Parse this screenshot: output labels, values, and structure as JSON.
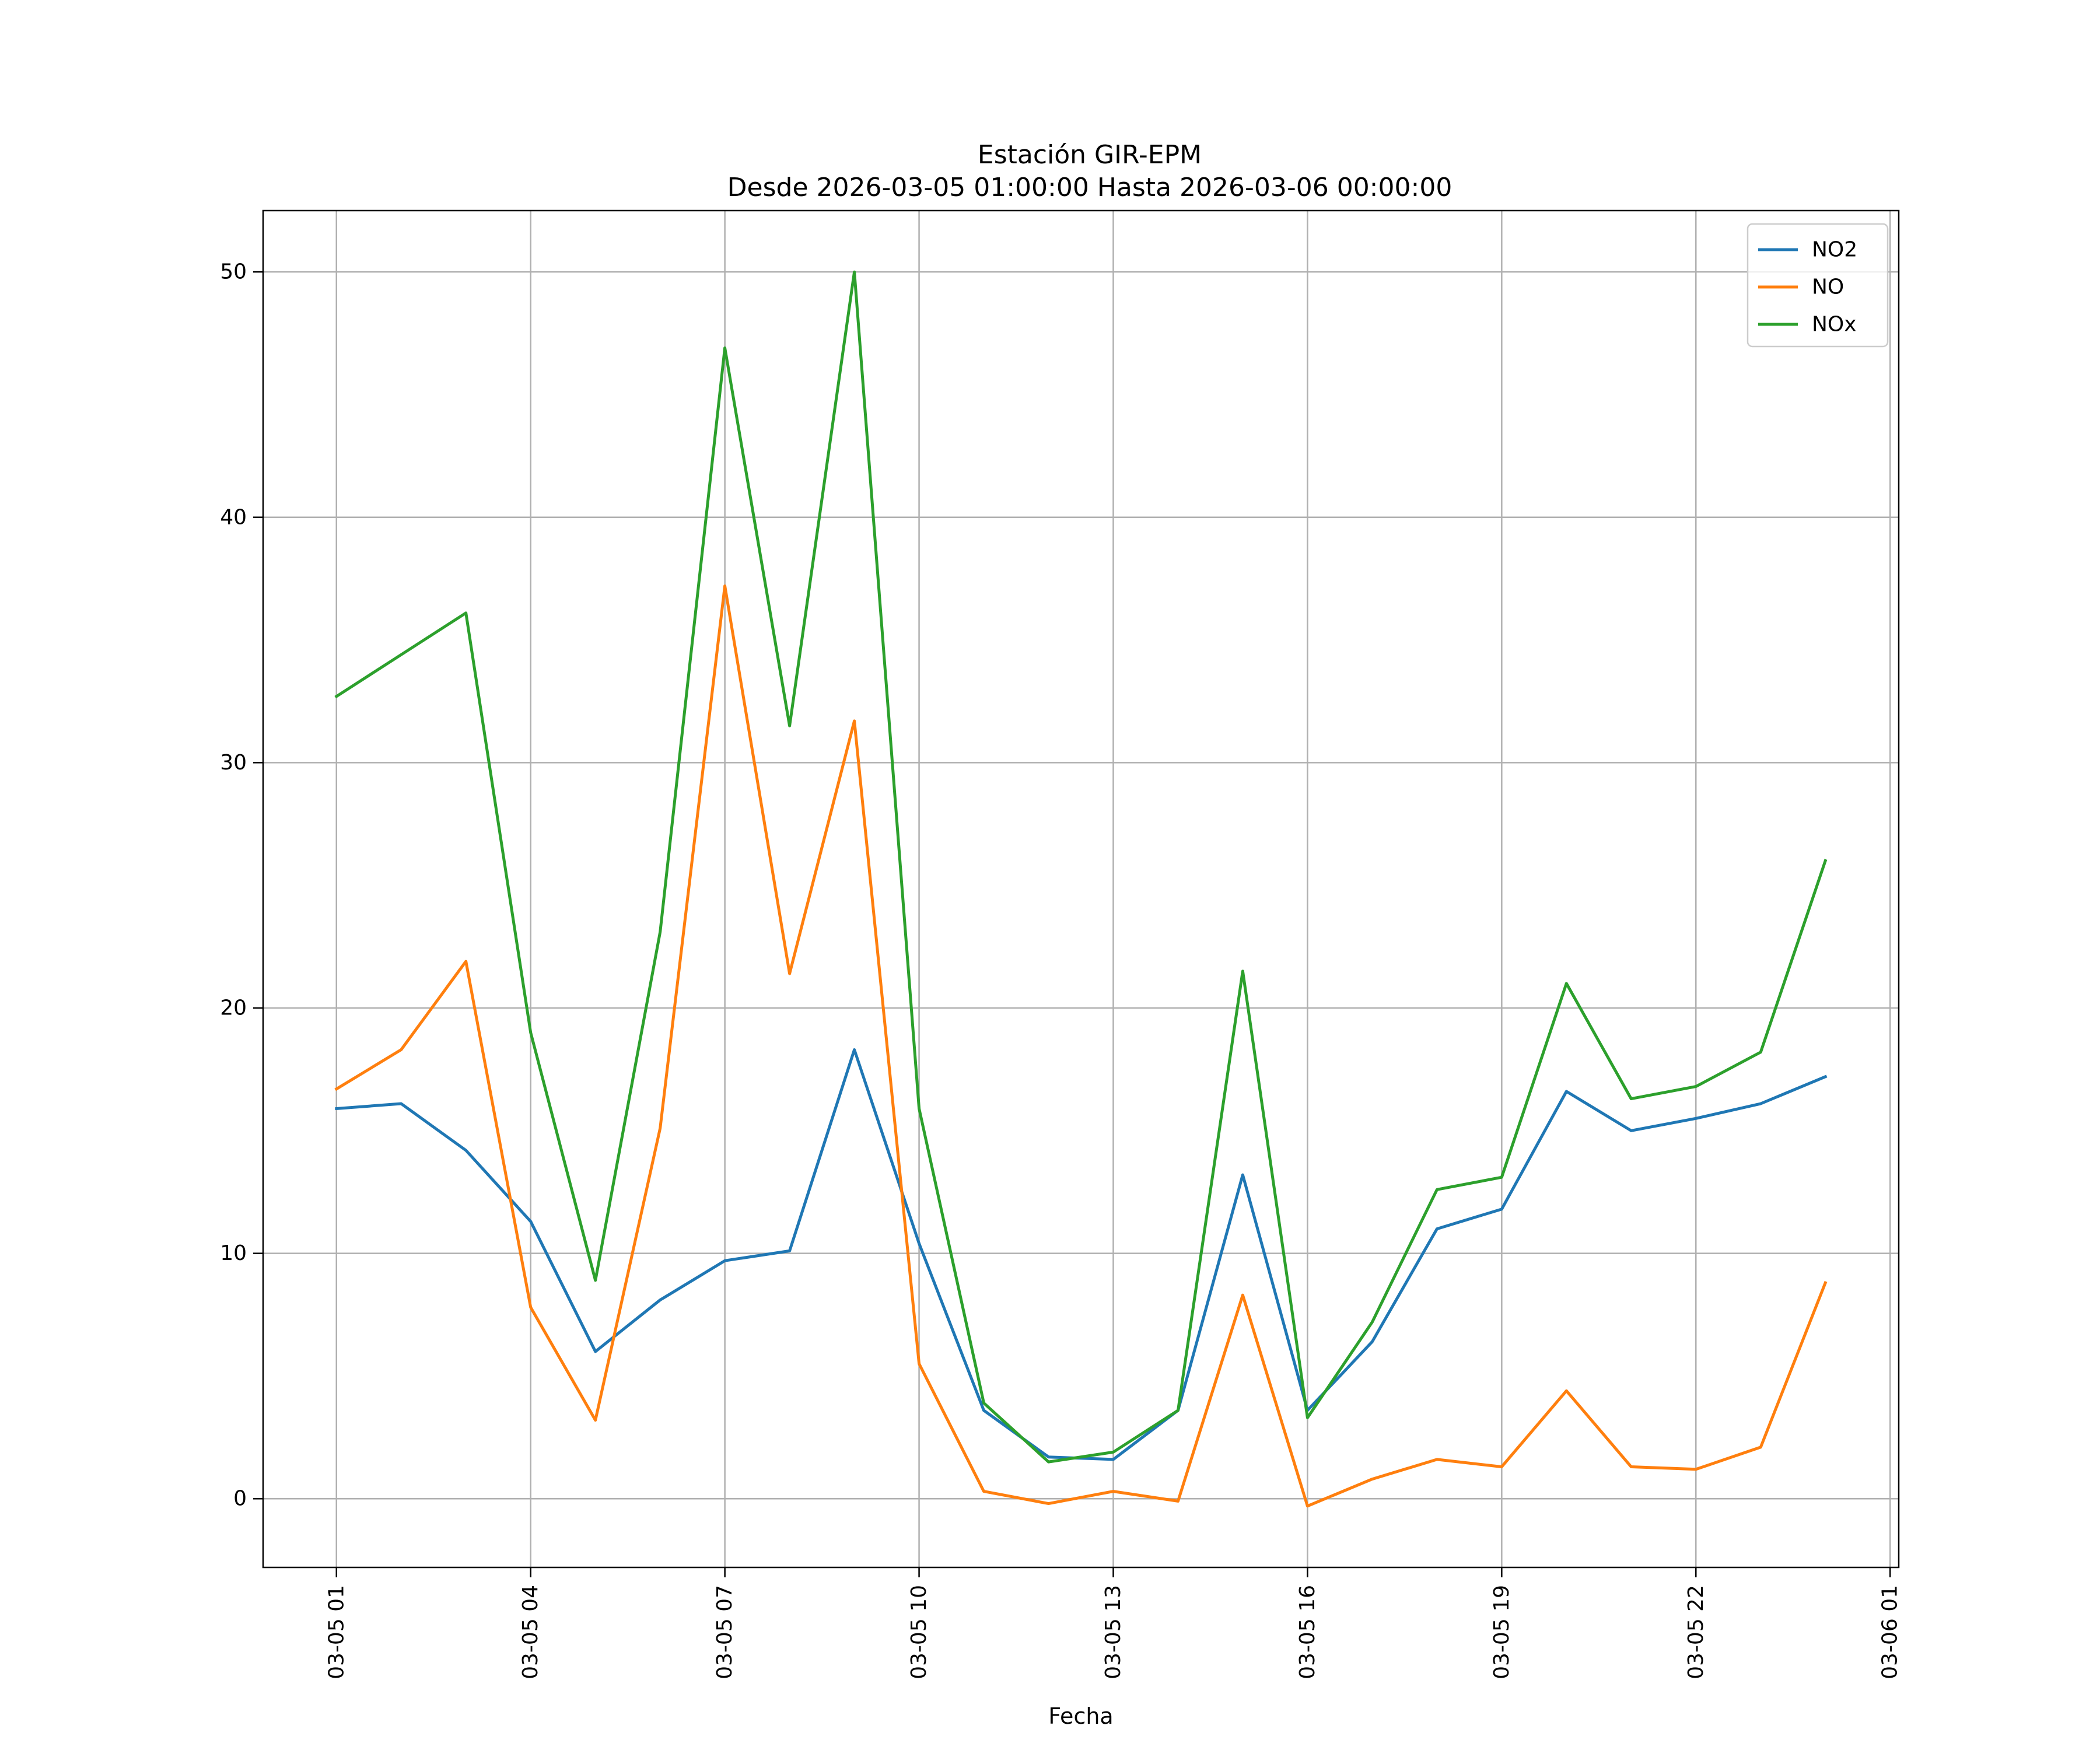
{
  "chart_data": {
    "type": "line",
    "title": "Estación GIR-EPM",
    "subtitle": "Desde 2026-03-05 01:00:00 Hasta 2026-03-06 00:00:00",
    "xlabel": "Fecha",
    "ylabel": "",
    "x": [
      "2026-03-05 01:00",
      "2026-03-05 02:00",
      "2026-03-05 03:00",
      "2026-03-05 04:00",
      "2026-03-05 05:00",
      "2026-03-05 06:00",
      "2026-03-05 07:00",
      "2026-03-05 08:00",
      "2026-03-05 09:00",
      "2026-03-05 10:00",
      "2026-03-05 11:00",
      "2026-03-05 12:00",
      "2026-03-05 13:00",
      "2026-03-05 14:00",
      "2026-03-05 15:00",
      "2026-03-05 16:00",
      "2026-03-05 17:00",
      "2026-03-05 18:00",
      "2026-03-05 19:00",
      "2026-03-05 20:00",
      "2026-03-05 21:00",
      "2026-03-05 22:00",
      "2026-03-05 23:00",
      "2026-03-06 00:00"
    ],
    "xlim": [
      "2026-03-04 23:52",
      "2026-03-06 01:08"
    ],
    "xticks": [
      "2026-03-05 01:00",
      "2026-03-05 04:00",
      "2026-03-05 07:00",
      "2026-03-05 10:00",
      "2026-03-05 13:00",
      "2026-03-05 16:00",
      "2026-03-05 19:00",
      "2026-03-05 22:00",
      "2026-03-06 01:00"
    ],
    "xtick_labels": [
      "03-05 01",
      "03-05 04",
      "03-05 07",
      "03-05 10",
      "03-05 13",
      "03-05 16",
      "03-05 19",
      "03-05 22",
      "03-06 01"
    ],
    "ylim": [
      -2.8,
      52.5
    ],
    "yticks": [
      0,
      10,
      20,
      30,
      40,
      50
    ],
    "ytick_labels": [
      "0",
      "10",
      "20",
      "30",
      "40",
      "50"
    ],
    "grid": true,
    "legend_position": "top-right",
    "series": [
      {
        "name": "NO2",
        "color": "#1f77b4",
        "values": [
          15.9,
          16.1,
          14.2,
          11.3,
          6.0,
          8.1,
          9.7,
          10.1,
          18.3,
          10.4,
          3.6,
          1.7,
          1.6,
          3.6,
          13.2,
          3.6,
          6.4,
          11.0,
          11.8,
          16.6,
          15.0,
          15.5,
          16.1,
          17.2
        ]
      },
      {
        "name": "NO",
        "color": "#ff7f0e",
        "values": [
          16.7,
          18.3,
          21.9,
          7.8,
          3.2,
          15.1,
          37.2,
          21.4,
          31.7,
          5.5,
          0.3,
          -0.2,
          0.3,
          -0.1,
          8.3,
          -0.3,
          0.8,
          1.6,
          1.3,
          4.4,
          1.3,
          1.2,
          2.1,
          8.8
        ]
      },
      {
        "name": "NOx",
        "color": "#2ca02c",
        "values": [
          32.7,
          34.4,
          36.1,
          19.0,
          8.9,
          23.1,
          46.9,
          31.5,
          50.0,
          15.9,
          3.9,
          1.5,
          1.9,
          3.6,
          21.5,
          3.3,
          7.2,
          12.6,
          13.1,
          21.0,
          16.3,
          16.8,
          18.2,
          26.0
        ]
      }
    ]
  }
}
